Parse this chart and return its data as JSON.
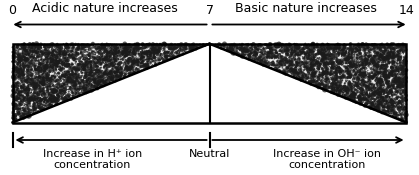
{
  "title_left": "Acidic nature increases",
  "title_right": "Basic nature increases",
  "label_0": "0",
  "label_7": "7",
  "label_14": "14",
  "bottom_left_label": "Increase in H⁺ ion\nconcentration",
  "bottom_right_label": "Increase in OH⁻ ion\nconcentration",
  "bottom_center_label": "Neutral",
  "bg_color": "#ffffff",
  "line_color": "#000000",
  "fig_width": 4.19,
  "fig_height": 1.75,
  "dpi": 100
}
